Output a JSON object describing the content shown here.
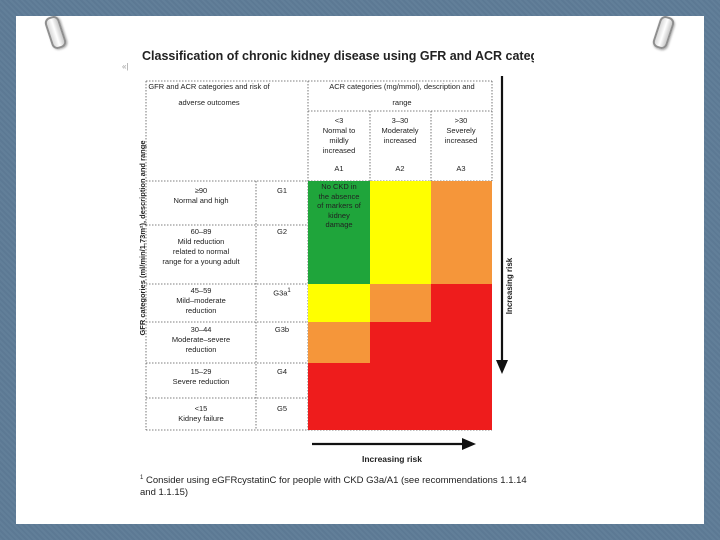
{
  "title": "Classification of chronic kidney disease using GFR and ACR categories",
  "stray_mark": "«|",
  "left_header": {
    "line1": "GFR and ACR categories and risk of",
    "line2": "adverse outcomes"
  },
  "acr_header": {
    "line1": "ACR categories (mg/mmol), description and",
    "line2": "range"
  },
  "acr_columns": [
    {
      "range": "<3",
      "desc1": "Normal to",
      "desc2": "mildly",
      "desc3": "increased",
      "code": "A1"
    },
    {
      "range": "3–30",
      "desc1": "Moderately",
      "desc2": "increased",
      "desc3": "",
      "code": "A2"
    },
    {
      "range": ">30",
      "desc1": "Severely",
      "desc2": "increased",
      "desc3": "",
      "code": "A3"
    }
  ],
  "gfr_axis_label": "GFR categories (ml/min/1.73m²), description and range",
  "gfr_rows": [
    {
      "range": "≥90",
      "desc1": "Normal and high",
      "desc2": "",
      "desc3": "",
      "code": "G1",
      "colors": [
        "#1fa53b",
        "#ffff00",
        "#f5963a"
      ]
    },
    {
      "range": "60–89",
      "desc1": "Mild reduction",
      "desc2": "related to normal",
      "desc3": "range for a young adult",
      "code": "G2",
      "colors": [
        "#1fa53b",
        "#ffff00",
        "#f5963a"
      ]
    },
    {
      "range": "45–59",
      "desc1": "Mild–moderate",
      "desc2": "reduction",
      "desc3": "",
      "code": "G3a",
      "colors": [
        "#ffff00",
        "#f5963a",
        "#ee1c1c"
      ]
    },
    {
      "range": "30–44",
      "desc1": "Moderate–severe",
      "desc2": "reduction",
      "desc3": "",
      "code": "G3b",
      "colors": [
        "#f5963a",
        "#ee1c1c",
        "#ee1c1c"
      ]
    },
    {
      "range": "15–29",
      "desc1": "Severe reduction",
      "desc2": "",
      "desc3": "",
      "code": "G4",
      "colors": [
        "#ee1c1c",
        "#ee1c1c",
        "#ee1c1c"
      ]
    },
    {
      "range": "<15",
      "desc1": "Kidney failure",
      "desc2": "",
      "desc3": "",
      "code": "G5",
      "colors": [
        "#ee1c1c",
        "#ee1c1c",
        "#ee1c1c"
      ]
    }
  ],
  "g3a_footnote_mark": "1",
  "green_cell_text": {
    "l1": "No CKD in",
    "l2": "the absence",
    "l3": "of markers of",
    "l4": "kidney",
    "l5": "damage"
  },
  "increasing_risk_right": "Increasing risk",
  "increasing_risk_bottom": "Increasing risk",
  "footnote": {
    "mark": "1",
    "text": "Consider using eGFRcystatinC for people with CKD G3a/A1 (see recommendations 1.1.14 and 1.1.15)"
  }
}
